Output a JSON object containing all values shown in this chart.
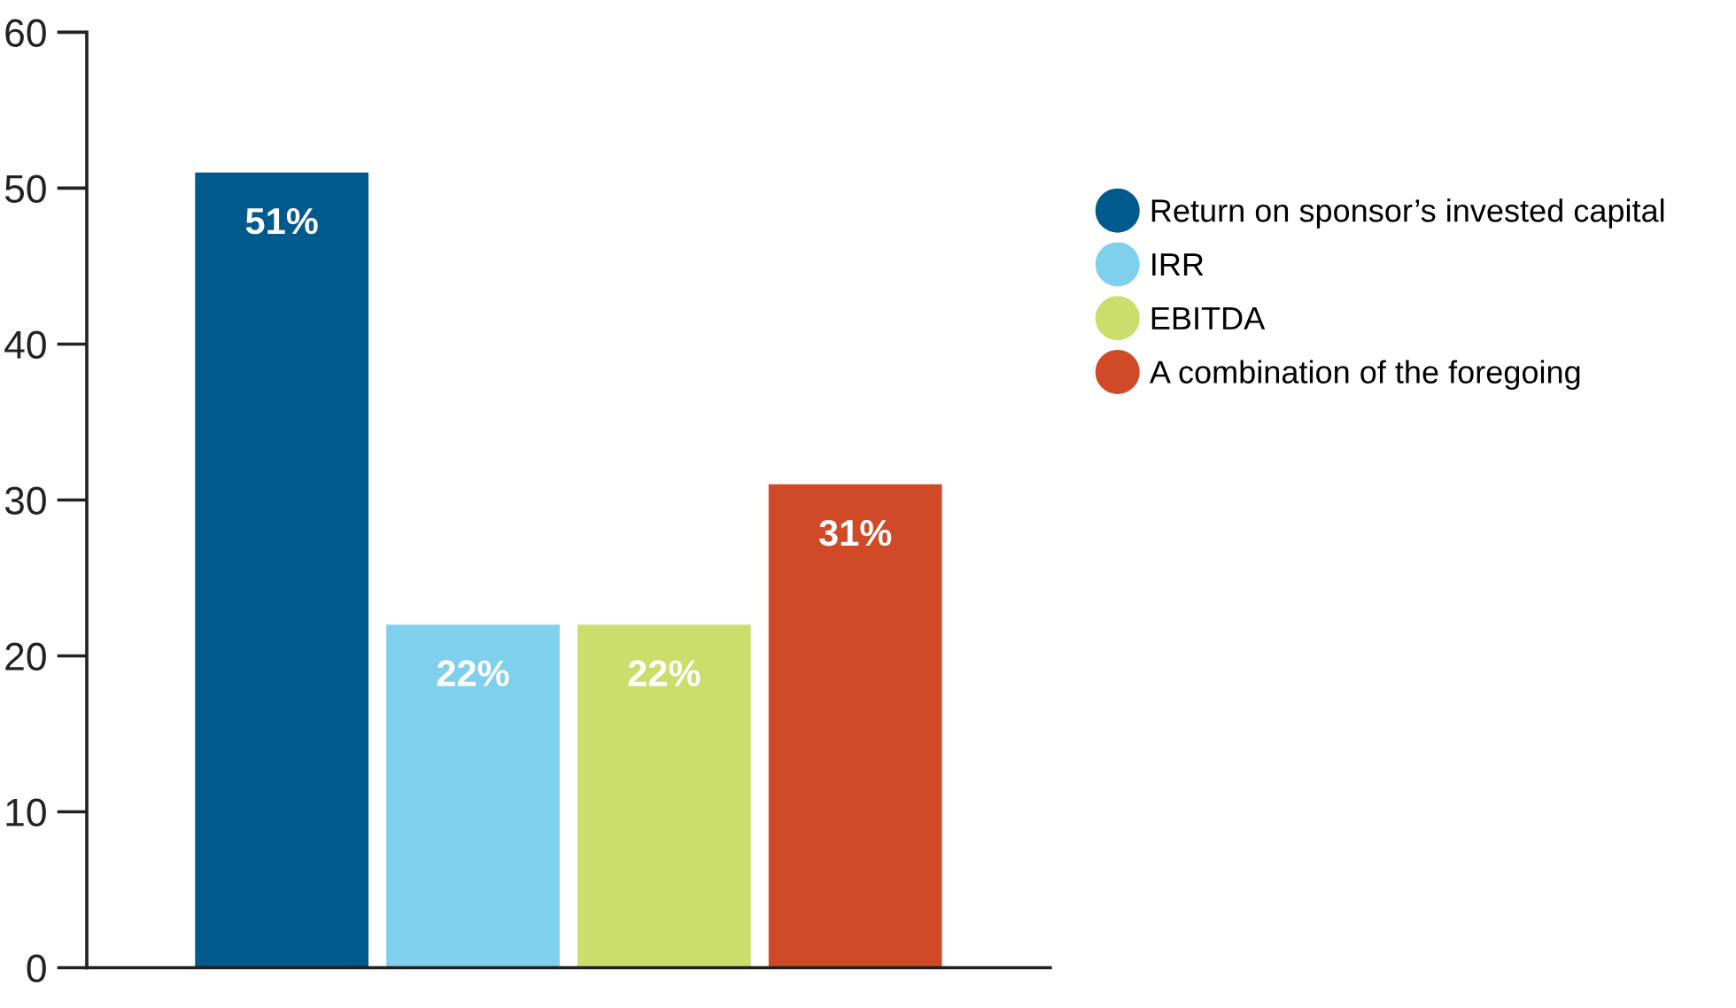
{
  "chart_data": {
    "type": "bar",
    "categories": [
      null,
      null,
      null,
      null
    ],
    "series": [
      {
        "name": "Return on sponsor’s invested capital",
        "color": "#005a8c",
        "values": [
          51,
          null,
          null,
          null
        ],
        "value_labels": [
          "51%",
          null,
          null,
          null
        ]
      },
      {
        "name": "IRR",
        "color": "#7fd0ec",
        "values": [
          null,
          22,
          null,
          null
        ],
        "value_labels": [
          null,
          "22%",
          null,
          null
        ]
      },
      {
        "name": "EBITDA",
        "color": "#cbdd6b",
        "values": [
          null,
          null,
          22,
          null
        ],
        "value_labels": [
          null,
          null,
          "22%",
          null
        ]
      },
      {
        "name": "A combination of the foregoing",
        "color": "#d14a27",
        "values": [
          null,
          null,
          null,
          31
        ],
        "value_labels": [
          null,
          null,
          null,
          "31%"
        ]
      }
    ],
    "ylim": [
      0,
      60
    ],
    "yticks": [
      0,
      10,
      20,
      30,
      40,
      50,
      60
    ],
    "grid": false,
    "legend": "right",
    "marker": "circle"
  }
}
